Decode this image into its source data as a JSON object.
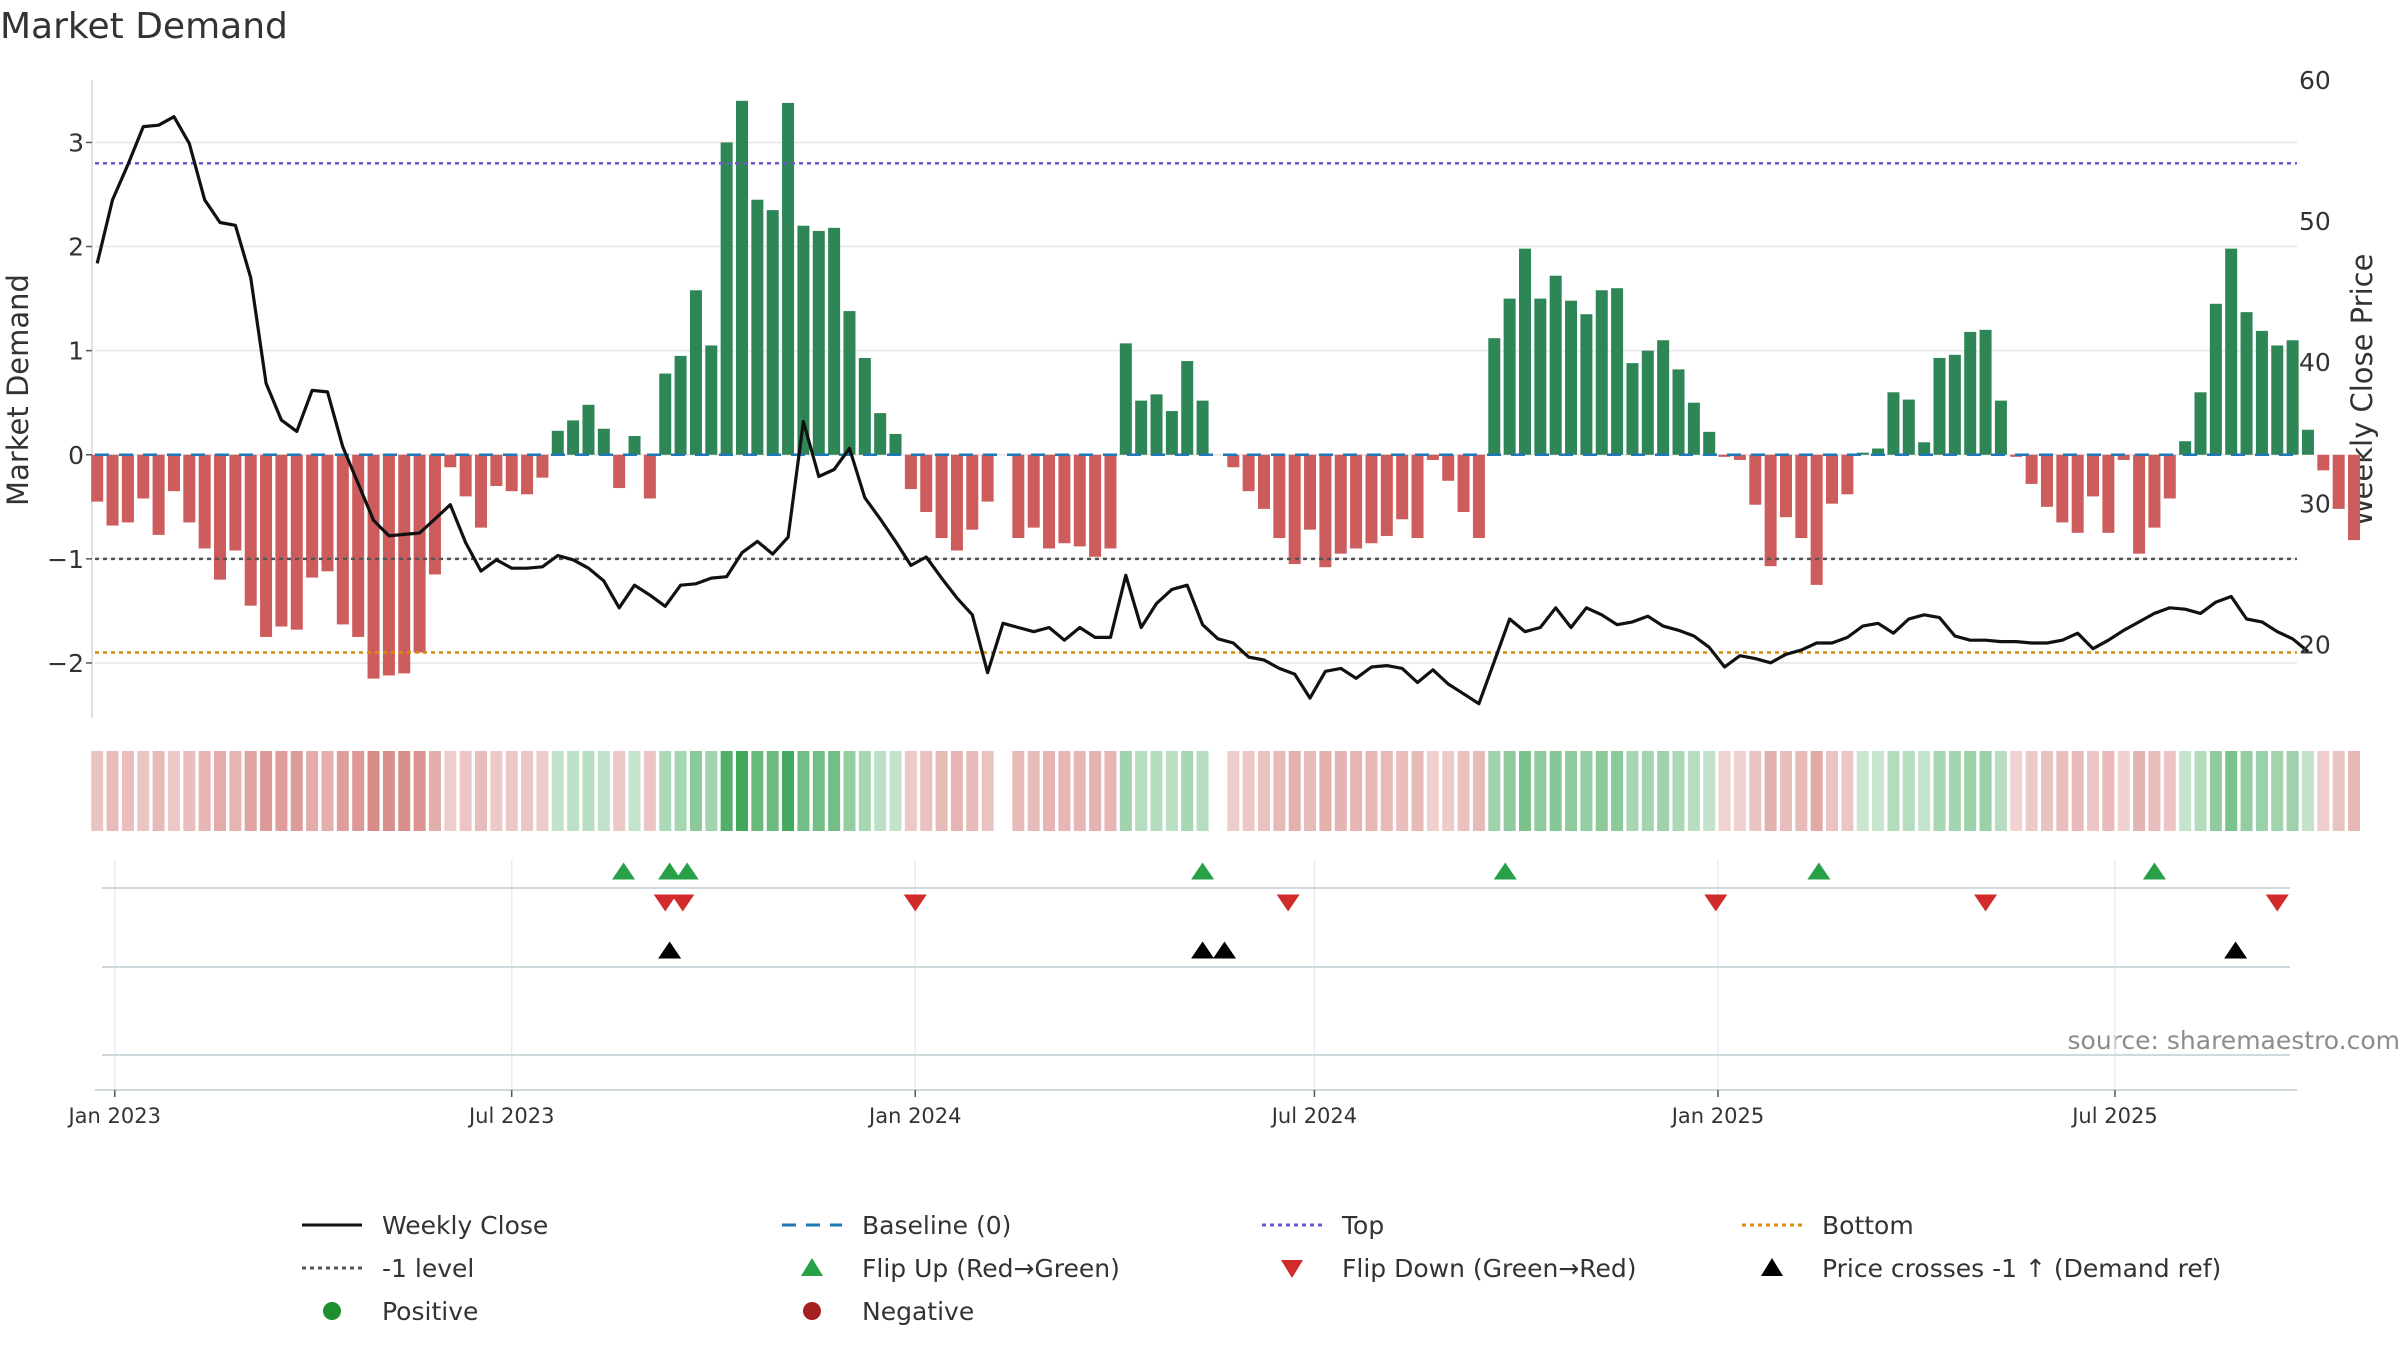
{
  "chart_data": {
    "type": "bar",
    "title": "Market Demand",
    "ylabel": "Market Demand",
    "y2label": "Weekly Close Price",
    "ylim": [
      -2.5,
      3.6
    ],
    "y2lim": [
      15,
      60
    ],
    "yticks": [
      3,
      2,
      1,
      0,
      -1,
      -2
    ],
    "ytick_labels": [
      "3",
      "2",
      "1",
      "0",
      "−1",
      "−2"
    ],
    "y2ticks": [
      60,
      50,
      40,
      30,
      20
    ],
    "y2tick_labels": [
      "60",
      "50",
      "40",
      "30",
      "20"
    ],
    "x_range": [
      "2022-12-23",
      "2025-09-22"
    ],
    "xticks": [
      "2023-01-01",
      "2023-07-01",
      "2024-01-01",
      "2024-07-01",
      "2025-01-01",
      "2025-07-01"
    ],
    "xtick_labels": [
      "Jan 2023",
      "Jul 2023",
      "Jan 2024",
      "Jul 2024",
      "Jan 2025",
      "Jul 2025"
    ],
    "reference_lines": {
      "top": 2.8,
      "minus_one": -1,
      "bottom": -1.9,
      "baseline": 0
    },
    "series": [
      {
        "name": "Market Demand",
        "start": "2022-12-24",
        "values": [
          -0.45,
          -0.68,
          -0.65,
          -0.42,
          -0.77,
          -0.35,
          -0.65,
          -0.9,
          -1.2,
          -0.92,
          -1.45,
          -1.75,
          -1.65,
          -1.68,
          -1.18,
          -1.12,
          -1.63,
          -1.75,
          -2.15,
          -2.12,
          -2.1,
          -1.9,
          -1.15,
          -0.12,
          -0.4,
          -0.7,
          -0.3,
          -0.35,
          -0.38,
          -0.22,
          0.23,
          0.33,
          0.48,
          0.25,
          -0.32,
          0.18,
          -0.42,
          0.78,
          0.95,
          1.58,
          1.05,
          3.0,
          3.4,
          2.45,
          2.35,
          3.38,
          2.2,
          2.15,
          2.18,
          1.38,
          0.93,
          0.4,
          0.2,
          -0.33,
          -0.55,
          -0.8,
          -0.92,
          -0.72,
          -0.45,
          null,
          -0.8,
          -0.7,
          -0.9,
          -0.85,
          -0.88,
          -0.98,
          -0.9,
          1.07,
          0.52,
          0.58,
          0.42,
          0.9,
          0.52,
          null,
          -0.12,
          -0.35,
          -0.52,
          -0.8,
          -1.05,
          -0.72,
          -1.08,
          -0.95,
          -0.9,
          -0.85,
          -0.78,
          -0.62,
          -0.8,
          -0.05,
          -0.25,
          -0.55,
          -0.8,
          1.12,
          1.5,
          1.98,
          1.5,
          1.72,
          1.48,
          1.35,
          1.58,
          1.6,
          0.88,
          1.0,
          1.1,
          0.82,
          0.5,
          0.22,
          -0.02,
          -0.05,
          -0.48,
          -1.07,
          -0.6,
          -0.8,
          -1.25,
          -0.47,
          -0.38,
          0.02,
          0.06,
          0.6,
          0.53,
          0.12,
          0.93,
          0.96,
          1.18,
          1.2,
          0.52,
          -0.02,
          -0.28,
          -0.5,
          -0.65,
          -0.75,
          -0.4,
          -0.75,
          -0.05,
          -0.95,
          -0.7,
          -0.42,
          0.13,
          0.6,
          1.45,
          1.98,
          1.37,
          1.19,
          1.05,
          1.1,
          0.24,
          -0.15,
          -0.52,
          -0.82
        ]
      },
      {
        "name": "Weekly Close",
        "axis": "right",
        "start": "2022-12-24",
        "values": [
          47,
          51.5,
          54,
          56.7,
          56.8,
          57.4,
          55.5,
          51.5,
          49.9,
          49.7,
          46,
          38.5,
          35.9,
          35.1,
          38,
          37.9,
          34,
          31.4,
          28.8,
          27.7,
          27.8,
          27.9,
          28.9,
          29.9,
          27.2,
          25.2,
          26,
          25.4,
          25.4,
          25.5,
          26.3,
          26,
          25.4,
          24.5,
          22.6,
          24.2,
          23.5,
          22.7,
          24.2,
          24.3,
          24.7,
          24.8,
          26.5,
          27.3,
          26.4,
          27.6,
          35.8,
          31.9,
          32.4,
          33.9,
          30.4,
          28.9,
          27.3,
          25.6,
          26.2,
          24.7,
          23.3,
          22.1,
          18,
          21.5,
          21.2,
          20.9,
          21.2,
          20.3,
          21.2,
          20.5,
          20.5,
          24.9,
          21.2,
          22.9,
          23.9,
          24.2,
          21.4,
          20.4,
          20.1,
          19.1,
          18.9,
          18.3,
          17.9,
          16.2,
          18.1,
          18.3,
          17.6,
          18.4,
          18.5,
          18.3,
          17.3,
          18.2,
          17.2,
          16.5,
          15.8,
          18.8,
          21.8,
          20.9,
          21.2,
          22.6,
          21.2,
          22.6,
          22.1,
          21.4,
          21.6,
          22,
          21.3,
          21,
          20.6,
          19.8,
          18.4,
          19.2,
          19,
          18.7,
          19.3,
          19.6,
          20.1,
          20.1,
          20.5,
          21.3,
          21.5,
          20.8,
          21.8,
          22.1,
          21.9,
          20.6,
          20.3,
          20.3,
          20.2,
          20.2,
          20.1,
          20.1,
          20.3,
          20.8,
          19.7,
          20.3,
          21,
          21.6,
          22.2,
          22.6,
          22.5,
          22.2,
          23,
          23.4,
          21.8,
          21.6,
          20.9,
          20.4,
          19.5
        ]
      }
    ],
    "flip_up_dates": [
      "2023-08-21",
      "2023-09-11",
      "2023-09-19",
      "2024-05-11",
      "2024-09-26",
      "2025-02-16",
      "2025-07-19"
    ],
    "flip_down_dates": [
      "2023-09-09",
      "2023-09-17",
      "2024-01-01",
      "2024-06-19",
      "2024-12-31",
      "2025-05-03",
      "2025-09-13"
    ],
    "price_cross_dates": [
      "2023-09-11",
      "2024-05-11",
      "2024-05-21",
      "2025-08-25"
    ],
    "heat_strip": "weekly color intensity mirrors Market Demand value"
  },
  "legend": {
    "weekly_close": "Weekly Close",
    "baseline": "Baseline (0)",
    "top": "Top",
    "bottom": "Bottom",
    "minus_one": "-1 level",
    "flip_up": "Flip Up (Red→Green)",
    "flip_down": "Flip Down (Green→Red)",
    "price_cross": "Price crosses -1 ↑ (Demand ref)",
    "positive": "Positive",
    "negative": "Negative"
  },
  "source": "source: sharemaestro.com",
  "colors": {
    "positive": "#2e8555",
    "negative": "#cd5c5c",
    "line": "#111111",
    "baseline": "#1f77b4",
    "top": "#6a5acd",
    "bottom": "#d98c0a",
    "minus_one": "#555555",
    "flip_up": "#27a048",
    "flip_down": "#d22b2b",
    "legend_positive": "#1e8f2e",
    "legend_negative": "#a32020"
  }
}
